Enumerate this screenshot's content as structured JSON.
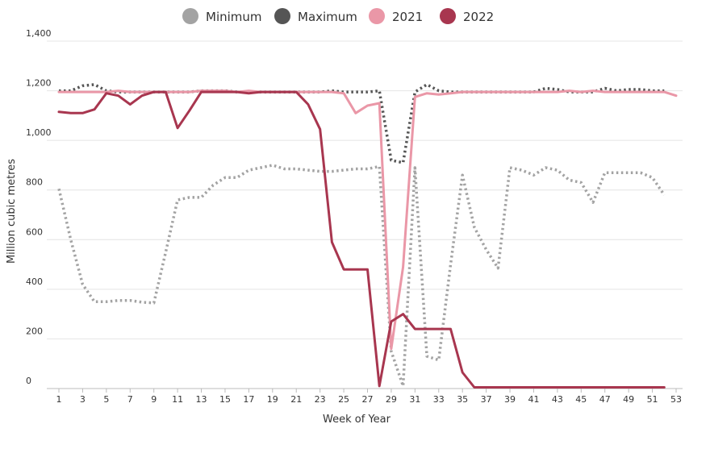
{
  "chart_data": {
    "type": "line",
    "xlabel": "Week of Year",
    "ylabel": "Million cubic metres",
    "xlim": [
      1,
      53
    ],
    "ylim": [
      0,
      1400
    ],
    "x_ticks": [
      1,
      3,
      5,
      7,
      9,
      11,
      13,
      15,
      17,
      19,
      21,
      23,
      25,
      27,
      29,
      31,
      33,
      35,
      37,
      39,
      41,
      43,
      45,
      47,
      49,
      51,
      53
    ],
    "y_ticks": [
      0,
      200,
      400,
      600,
      800,
      1000,
      1200,
      1400
    ],
    "y_tick_labels": [
      "0",
      "200",
      "400",
      "600",
      "800",
      "1,000",
      "1,200",
      "1,400"
    ],
    "grid": true,
    "legend_position": "top-center",
    "series": [
      {
        "name": "Minimum",
        "color": "#a3a3a3",
        "style": "dotted",
        "x": [
          1,
          2,
          3,
          4,
          5,
          6,
          7,
          8,
          9,
          10,
          11,
          12,
          13,
          14,
          15,
          16,
          17,
          18,
          19,
          20,
          21,
          22,
          23,
          24,
          25,
          26,
          27,
          28,
          29,
          30,
          31,
          32,
          33,
          34,
          35,
          36,
          37,
          38,
          39,
          40,
          41,
          42,
          43,
          44,
          45,
          46,
          47,
          48,
          49,
          50,
          51,
          52
        ],
        "y": [
          805,
          600,
          420,
          350,
          350,
          355,
          355,
          348,
          345,
          550,
          760,
          770,
          770,
          820,
          850,
          850,
          880,
          890,
          900,
          885,
          885,
          880,
          875,
          875,
          880,
          885,
          885,
          895,
          150,
          10,
          890,
          130,
          115,
          500,
          860,
          650,
          560,
          485,
          890,
          880,
          860,
          890,
          880,
          840,
          830,
          750,
          870,
          870,
          870,
          870,
          850,
          780
        ]
      },
      {
        "name": "Maximum",
        "color": "#555555",
        "style": "dotted",
        "x": [
          1,
          2,
          3,
          4,
          5,
          6,
          7,
          8,
          9,
          10,
          11,
          12,
          13,
          14,
          15,
          16,
          17,
          18,
          19,
          20,
          21,
          22,
          23,
          24,
          25,
          26,
          27,
          28,
          29,
          30,
          31,
          32,
          33,
          34,
          35,
          36,
          37,
          38,
          39,
          40,
          41,
          42,
          43,
          44,
          45,
          46,
          47,
          48,
          49,
          50,
          51,
          52
        ],
        "y": [
          1200,
          1200,
          1220,
          1225,
          1200,
          1195,
          1195,
          1195,
          1195,
          1195,
          1195,
          1195,
          1200,
          1200,
          1200,
          1195,
          1195,
          1195,
          1195,
          1195,
          1195,
          1195,
          1195,
          1200,
          1195,
          1195,
          1195,
          1200,
          920,
          910,
          1195,
          1225,
          1200,
          1195,
          1195,
          1195,
          1195,
          1195,
          1195,
          1195,
          1195,
          1210,
          1205,
          1195,
          1195,
          1195,
          1210,
          1200,
          1205,
          1205,
          1200,
          1200
        ]
      },
      {
        "name": "2021",
        "color": "#ea97a7",
        "style": "solid",
        "x": [
          1,
          2,
          3,
          4,
          5,
          6,
          7,
          8,
          9,
          10,
          11,
          12,
          13,
          14,
          15,
          16,
          17,
          18,
          19,
          20,
          21,
          22,
          23,
          24,
          25,
          26,
          27,
          28,
          29,
          30,
          31,
          32,
          33,
          34,
          35,
          36,
          37,
          38,
          39,
          40,
          41,
          42,
          43,
          44,
          45,
          46,
          47,
          48,
          49,
          50,
          51,
          52,
          53
        ],
        "y": [
          1195,
          1195,
          1195,
          1195,
          1195,
          1200,
          1195,
          1195,
          1195,
          1195,
          1195,
          1195,
          1200,
          1200,
          1200,
          1195,
          1200,
          1195,
          1195,
          1195,
          1195,
          1195,
          1195,
          1195,
          1190,
          1110,
          1140,
          1150,
          160,
          490,
          1175,
          1190,
          1185,
          1190,
          1195,
          1195,
          1195,
          1195,
          1195,
          1195,
          1195,
          1195,
          1195,
          1200,
          1195,
          1200,
          1195,
          1195,
          1195,
          1195,
          1195,
          1195,
          1180
        ]
      },
      {
        "name": "2022",
        "color": "#a8364f",
        "style": "solid",
        "x": [
          1,
          2,
          3,
          4,
          5,
          6,
          7,
          8,
          9,
          10,
          11,
          12,
          13,
          14,
          15,
          16,
          17,
          18,
          19,
          20,
          21,
          22,
          23,
          24,
          25,
          26,
          27,
          28,
          29,
          30,
          31,
          32,
          33,
          34,
          35,
          36,
          37,
          38,
          39,
          40,
          41,
          42,
          43,
          44,
          45,
          46,
          47,
          48,
          49,
          50,
          51,
          52
        ],
        "y": [
          1115,
          1110,
          1110,
          1125,
          1190,
          1180,
          1145,
          1180,
          1195,
          1195,
          1050,
          1120,
          1195,
          1195,
          1195,
          1195,
          1190,
          1195,
          1195,
          1195,
          1195,
          1145,
          1045,
          590,
          480,
          480,
          480,
          10,
          270,
          300,
          240,
          240,
          240,
          240,
          65,
          5,
          5,
          5,
          5,
          5,
          5,
          5,
          5,
          5,
          5,
          5,
          5,
          5,
          5,
          5,
          5,
          5
        ]
      }
    ]
  }
}
